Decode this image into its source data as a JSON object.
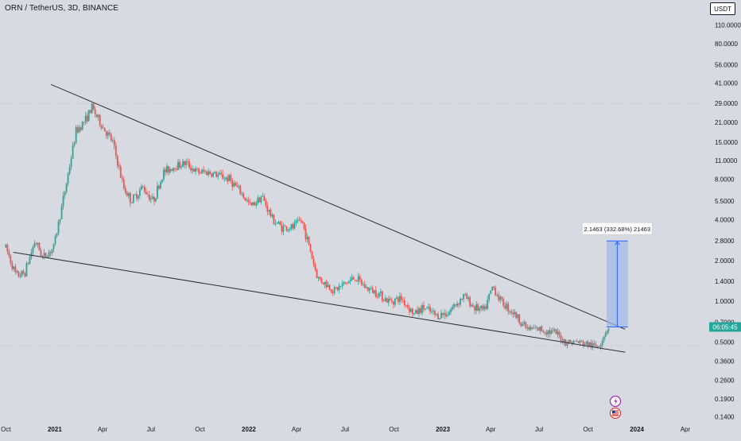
{
  "header": {
    "symbol_title": "ORN / TetherUS, 3D, BINANCE",
    "currency": "USDT"
  },
  "colors": {
    "background": "#d7dae1",
    "up_candle": "#26a69a",
    "down_candle": "#ef5350",
    "trendline": "#2a2e39",
    "measure_fill": "#9fb7e8",
    "measure_line": "#2962ff",
    "price_badge": "#26a69a",
    "grid": "#b8bcc4"
  },
  "chart_data": {
    "type": "candlestick",
    "y_scale": "log",
    "ylim": [
      0.13,
      125
    ],
    "x_range": [
      "2020-09-20",
      "2024-05-01"
    ],
    "y_ticks": [
      "110.0000",
      "80.0000",
      "56.0000",
      "41.0000",
      "29.0000",
      "21.0000",
      "15.0000",
      "11.0000",
      "8.0000",
      "5.5000",
      "4.0000",
      "2.8000",
      "2.0000",
      "1.4000",
      "1.0000",
      "0.7000",
      "0.5000",
      "0.3600",
      "0.2600",
      "0.1900",
      "0.1400"
    ],
    "x_ticks": [
      {
        "date": "2020-10-01",
        "label": "Oct"
      },
      {
        "date": "2021-01-01",
        "label": "2021"
      },
      {
        "date": "2021-04-01",
        "label": "Apr"
      },
      {
        "date": "2021-07-01",
        "label": "Jul"
      },
      {
        "date": "2021-10-01",
        "label": "Oct"
      },
      {
        "date": "2022-01-01",
        "label": "2022"
      },
      {
        "date": "2022-04-01",
        "label": "Apr"
      },
      {
        "date": "2022-07-01",
        "label": "Jul"
      },
      {
        "date": "2022-10-01",
        "label": "Oct"
      },
      {
        "date": "2023-01-01",
        "label": "2023"
      },
      {
        "date": "2023-04-01",
        "label": "Apr"
      },
      {
        "date": "2023-07-01",
        "label": "Jul"
      },
      {
        "date": "2023-10-01",
        "label": "Oct"
      },
      {
        "date": "2024-01-01",
        "label": "2024"
      },
      {
        "date": "2024-04-01",
        "label": "Apr"
      }
    ],
    "price_path": [
      [
        "2020-10-01",
        2.5
      ],
      [
        "2020-10-20",
        1.55
      ],
      [
        "2020-11-05",
        1.6
      ],
      [
        "2020-11-25",
        2.8
      ],
      [
        "2020-12-10",
        2.1
      ],
      [
        "2020-12-30",
        2.5
      ],
      [
        "2021-01-20",
        6.5
      ],
      [
        "2021-02-10",
        18
      ],
      [
        "2021-02-28",
        22
      ],
      [
        "2021-03-12",
        27
      ],
      [
        "2021-03-30",
        20
      ],
      [
        "2021-04-20",
        15
      ],
      [
        "2021-05-10",
        7.0
      ],
      [
        "2021-05-25",
        5.5
      ],
      [
        "2021-06-15",
        7.0
      ],
      [
        "2021-07-05",
        5.5
      ],
      [
        "2021-07-25",
        9.0
      ],
      [
        "2021-08-15",
        10.0
      ],
      [
        "2021-09-05",
        10.5
      ],
      [
        "2021-09-25",
        9.0
      ],
      [
        "2021-10-15",
        9.0
      ],
      [
        "2021-11-05",
        8.5
      ],
      [
        "2021-11-25",
        8.0
      ],
      [
        "2021-12-15",
        6.5
      ],
      [
        "2022-01-05",
        5.0
      ],
      [
        "2022-01-25",
        6.0
      ],
      [
        "2022-02-15",
        4.0
      ],
      [
        "2022-03-05",
        3.5
      ],
      [
        "2022-03-25",
        3.5
      ],
      [
        "2022-04-10",
        4.0
      ],
      [
        "2022-04-25",
        2.5
      ],
      [
        "2022-05-10",
        1.5
      ],
      [
        "2022-05-25",
        1.35
      ],
      [
        "2022-06-10",
        1.2
      ],
      [
        "2022-07-01",
        1.35
      ],
      [
        "2022-07-20",
        1.5
      ],
      [
        "2022-08-10",
        1.25
      ],
      [
        "2022-09-01",
        1.15
      ],
      [
        "2022-09-20",
        1.0
      ],
      [
        "2022-10-15",
        1.05
      ],
      [
        "2022-11-08",
        0.8
      ],
      [
        "2022-11-25",
        0.9
      ],
      [
        "2022-12-20",
        0.78
      ],
      [
        "2023-01-10",
        0.82
      ],
      [
        "2023-01-25",
        0.95
      ],
      [
        "2023-02-10",
        1.1
      ],
      [
        "2023-03-01",
        0.9
      ],
      [
        "2023-03-20",
        0.85
      ],
      [
        "2023-04-05",
        1.3
      ],
      [
        "2023-04-20",
        1.0
      ],
      [
        "2023-05-10",
        0.85
      ],
      [
        "2023-06-10",
        0.62
      ],
      [
        "2023-07-05",
        0.62
      ],
      [
        "2023-08-01",
        0.58
      ],
      [
        "2023-08-20",
        0.5
      ],
      [
        "2023-09-10",
        0.5
      ],
      [
        "2023-10-01",
        0.48
      ],
      [
        "2023-10-15",
        0.46
      ],
      [
        "2023-10-25",
        0.5
      ],
      [
        "2023-11-05",
        0.62
      ],
      [
        "2023-11-10",
        0.64
      ]
    ],
    "trendlines": [
      {
        "from": [
          "2020-12-25",
          40
        ],
        "to": [
          "2023-12-10",
          0.62
        ]
      },
      {
        "from": [
          "2020-10-15",
          2.3
        ],
        "to": [
          "2023-12-10",
          0.42
        ]
      }
    ],
    "measure": {
      "from": [
        "2023-11-05",
        0.645
      ],
      "to": [
        "2023-12-15",
        2.79
      ],
      "label": "2.1463 (332.68%) 21463"
    },
    "last_price": {
      "value": 0.645,
      "label": "06:05:45"
    },
    "horizontal_levels": [
      29.0,
      0.47
    ]
  }
}
